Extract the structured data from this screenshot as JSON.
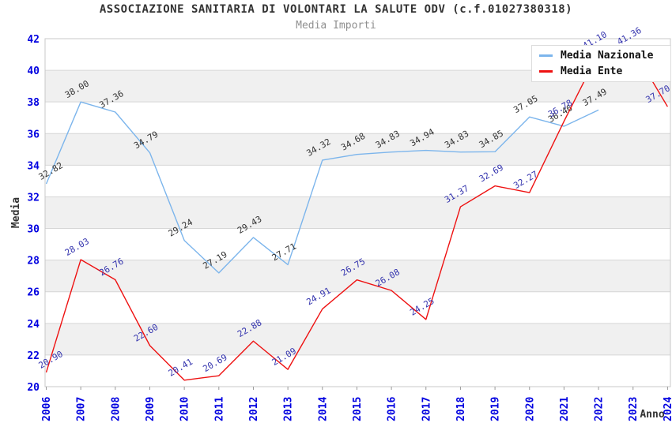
{
  "chart_data": {
    "type": "line",
    "title": "ASSOCIAZIONE SANITARIA DI VOLONTARI LA SALUTE ODV (c.f.01027380318)",
    "subtitle": "Media Importi",
    "x": [
      2006,
      2007,
      2008,
      2009,
      2010,
      2011,
      2012,
      2013,
      2014,
      2015,
      2016,
      2017,
      2018,
      2019,
      2020,
      2021,
      2022,
      2023,
      2024
    ],
    "xlabel": "Anno",
    "ylabel": "Media",
    "ylim": [
      20,
      42
    ],
    "ytick_step": 2,
    "grid": true,
    "legend_position": "top-right",
    "band_fill": "#f0f0f0",
    "gridline_color": "#d6d6d6",
    "plot_border_color": "#c8c8c8",
    "axis_tick_label_color": "#0000e0",
    "axis_title_color": "#333333",
    "series": [
      {
        "name": "Media Nazionale",
        "color": "#7cb5ec",
        "label_color": "#333333",
        "values": [
          32.82,
          38.0,
          37.36,
          34.79,
          29.24,
          27.19,
          29.43,
          27.71,
          34.32,
          34.68,
          34.83,
          34.94,
          34.83,
          34.85,
          37.05,
          36.46,
          37.49,
          null,
          null
        ]
      },
      {
        "name": "Media Ente",
        "color": "#ee1111",
        "label_color": "#3434ae",
        "values": [
          20.9,
          28.03,
          26.76,
          22.6,
          20.41,
          20.69,
          22.88,
          21.09,
          24.91,
          26.75,
          26.08,
          24.25,
          31.37,
          32.69,
          32.27,
          36.78,
          41.1,
          41.36,
          37.7
        ]
      }
    ]
  }
}
